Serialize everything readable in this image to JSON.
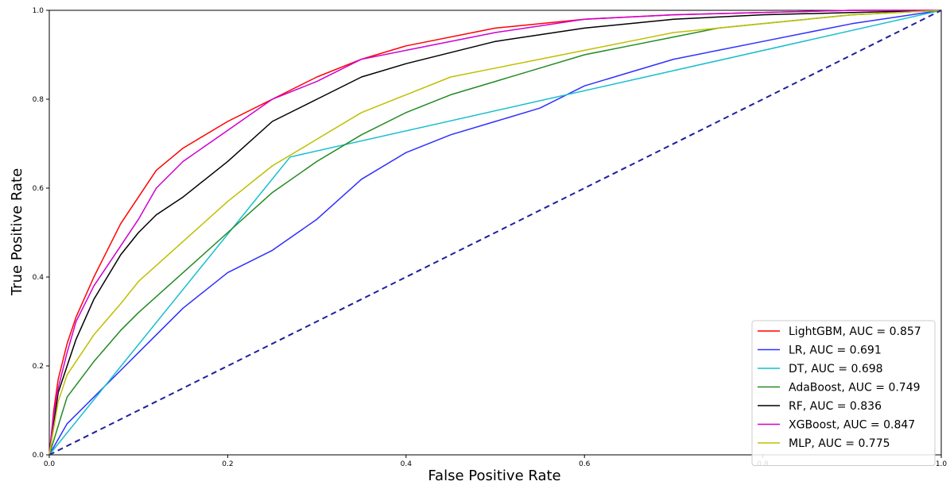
{
  "chart_data": {
    "type": "line",
    "title": "",
    "xlabel": "False Positive Rate",
    "ylabel": "True Positive Rate",
    "xlim": [
      0,
      1
    ],
    "ylim": [
      0,
      1
    ],
    "xticks": [
      "0.0",
      "0.2",
      "0.4",
      "0.6",
      "0.8",
      "1.0"
    ],
    "yticks": [
      "0.0",
      "0.2",
      "0.4",
      "0.6",
      "0.8",
      "1.0"
    ],
    "grid": false,
    "legend_position": "lower-right",
    "series": [
      {
        "name": "LightGBM, AUC = 0.857",
        "color": "#ff0000",
        "x": [
          0,
          0.005,
          0.01,
          0.02,
          0.03,
          0.05,
          0.08,
          0.1,
          0.12,
          0.15,
          0.2,
          0.25,
          0.3,
          0.35,
          0.4,
          0.5,
          0.6,
          0.7,
          0.8,
          0.9,
          1.0
        ],
        "y": [
          0,
          0.1,
          0.17,
          0.25,
          0.31,
          0.4,
          0.52,
          0.58,
          0.64,
          0.69,
          0.75,
          0.8,
          0.85,
          0.89,
          0.92,
          0.96,
          0.98,
          0.99,
          0.995,
          1.0,
          1.0
        ]
      },
      {
        "name": "LR, AUC = 0.691",
        "color": "#2f2fff",
        "x": [
          0,
          0.02,
          0.05,
          0.08,
          0.1,
          0.15,
          0.2,
          0.25,
          0.3,
          0.35,
          0.4,
          0.45,
          0.5,
          0.55,
          0.6,
          0.65,
          0.7,
          0.75,
          0.8,
          0.85,
          0.9,
          1.0
        ],
        "y": [
          0,
          0.07,
          0.13,
          0.19,
          0.23,
          0.33,
          0.41,
          0.46,
          0.53,
          0.62,
          0.68,
          0.72,
          0.75,
          0.78,
          0.83,
          0.86,
          0.89,
          0.91,
          0.93,
          0.95,
          0.97,
          1.0
        ]
      },
      {
        "name": "DT, AUC = 0.698",
        "color": "#17becf",
        "x": [
          0,
          0.27,
          1.0
        ],
        "y": [
          0,
          0.67,
          1.0
        ]
      },
      {
        "name": "AdaBoost, AUC = 0.749",
        "color": "#228b22",
        "x": [
          0,
          0.02,
          0.05,
          0.08,
          0.1,
          0.15,
          0.2,
          0.25,
          0.3,
          0.35,
          0.4,
          0.45,
          0.5,
          0.55,
          0.6,
          0.65,
          0.7,
          0.75,
          0.8,
          0.85,
          0.9,
          1.0
        ],
        "y": [
          0,
          0.13,
          0.21,
          0.28,
          0.32,
          0.41,
          0.5,
          0.59,
          0.66,
          0.72,
          0.77,
          0.81,
          0.84,
          0.87,
          0.9,
          0.92,
          0.94,
          0.96,
          0.97,
          0.98,
          0.99,
          1.0
        ]
      },
      {
        "name": "RF, AUC = 0.836",
        "color": "#000000",
        "x": [
          0,
          0.01,
          0.02,
          0.03,
          0.05,
          0.08,
          0.1,
          0.12,
          0.15,
          0.2,
          0.25,
          0.3,
          0.35,
          0.4,
          0.5,
          0.6,
          0.7,
          0.8,
          0.9,
          1.0
        ],
        "y": [
          0,
          0.14,
          0.2,
          0.26,
          0.35,
          0.45,
          0.5,
          0.54,
          0.58,
          0.66,
          0.75,
          0.8,
          0.85,
          0.88,
          0.93,
          0.96,
          0.98,
          0.99,
          0.995,
          1.0
        ]
      },
      {
        "name": "XGBoost, AUC = 0.847",
        "color": "#d000d0",
        "x": [
          0,
          0.005,
          0.01,
          0.02,
          0.03,
          0.05,
          0.08,
          0.1,
          0.12,
          0.15,
          0.2,
          0.25,
          0.3,
          0.35,
          0.4,
          0.5,
          0.6,
          0.7,
          0.8,
          0.9,
          1.0
        ],
        "y": [
          0,
          0.09,
          0.15,
          0.23,
          0.3,
          0.38,
          0.47,
          0.53,
          0.6,
          0.66,
          0.73,
          0.8,
          0.84,
          0.89,
          0.91,
          0.95,
          0.98,
          0.99,
          0.995,
          1.0,
          1.0
        ]
      },
      {
        "name": "MLP, AUC = 0.775",
        "color": "#bfbf00",
        "x": [
          0,
          0.01,
          0.02,
          0.05,
          0.08,
          0.1,
          0.15,
          0.2,
          0.25,
          0.3,
          0.35,
          0.4,
          0.45,
          0.5,
          0.55,
          0.6,
          0.65,
          0.7,
          0.75,
          0.8,
          0.85,
          0.9,
          1.0
        ],
        "y": [
          0,
          0.12,
          0.18,
          0.27,
          0.34,
          0.39,
          0.48,
          0.57,
          0.65,
          0.71,
          0.77,
          0.81,
          0.85,
          0.87,
          0.89,
          0.91,
          0.93,
          0.95,
          0.96,
          0.97,
          0.98,
          0.99,
          1.0
        ]
      }
    ],
    "reference_line": {
      "color": "#1f1f9a",
      "x": [
        0,
        1
      ],
      "y": [
        0,
        1
      ],
      "style": "dashed"
    }
  }
}
